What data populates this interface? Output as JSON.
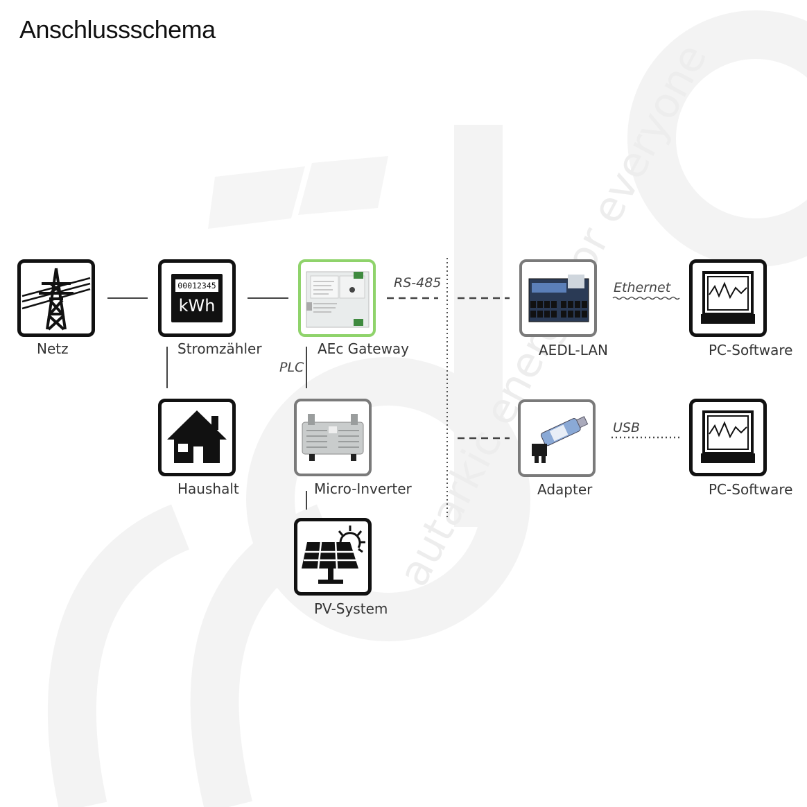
{
  "title": "Anschlussschema",
  "nodes": {
    "netz": "Netz",
    "stromzaehler": "Stromzähler",
    "gateway": "AEc Gateway",
    "haushalt": "Haushalt",
    "micro_inverter": "Micro-Inverter",
    "pv_system": "PV-System",
    "aedl_lan": "AEDL-LAN",
    "pc_software_1": "PC-Software",
    "adapter": "Adapter",
    "pc_software_2": "PC-Software"
  },
  "meter": {
    "reading": "00012345",
    "unit": "kWh"
  },
  "connections": {
    "rs485": "RS-485",
    "plc": "PLC",
    "ethernet": "Ethernet",
    "usb": "USB"
  },
  "watermark": {
    "text": "autarkic energy for everyone"
  },
  "icons": {
    "netz": "power-pylon-icon",
    "stromzaehler": "electricity-meter-icon",
    "gateway": "gateway-device-image",
    "haushalt": "house-icon",
    "micro_inverter": "micro-inverter-image",
    "pv_system": "solar-panel-icon",
    "aedl_lan": "datalogger-device-image",
    "adapter": "usb-adapter-image",
    "pc_software": "monitor-chart-icon"
  },
  "colors": {
    "icon_border": "#111111",
    "gateway_border": "#8fd36b",
    "device_border": "#7a7a7a"
  }
}
